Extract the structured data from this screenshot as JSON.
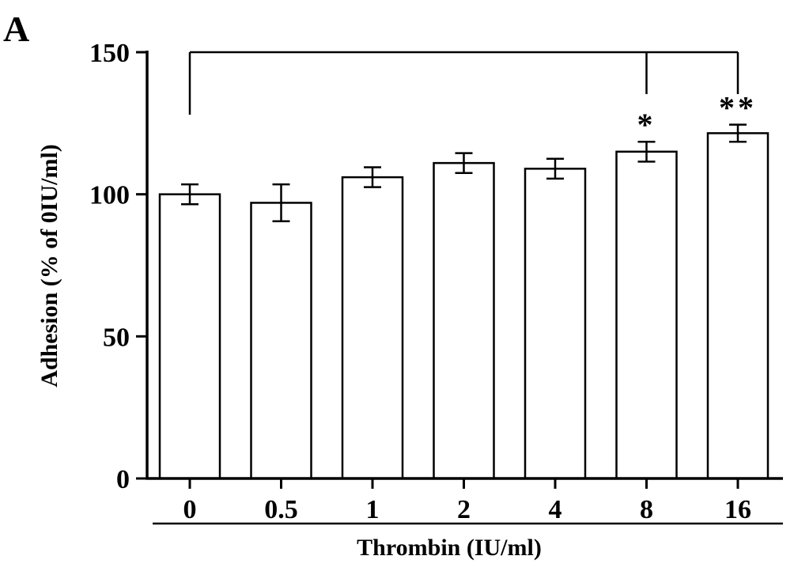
{
  "panel_label": "A",
  "chart_data": {
    "type": "bar",
    "title": "",
    "xlabel": "Thrombin (IU/ml)",
    "ylabel": "Adhesion (% of 0IU/ml)",
    "categories": [
      "0",
      "0.5",
      "1",
      "2",
      "4",
      "8",
      "16"
    ],
    "values": [
      100,
      97,
      106,
      111,
      109,
      115,
      121.5
    ],
    "errors": [
      3.5,
      6.5,
      3.5,
      3.5,
      3.5,
      3.5,
      3
    ],
    "ylim": [
      0,
      150
    ],
    "yticks": [
      0,
      50,
      100,
      150
    ],
    "grid": false,
    "annotations": [
      {
        "category": "8",
        "text": "*"
      },
      {
        "category": "16",
        "text": "**"
      }
    ],
    "comparison_bracket": {
      "from": "0",
      "to": [
        "8",
        "16"
      ]
    }
  }
}
